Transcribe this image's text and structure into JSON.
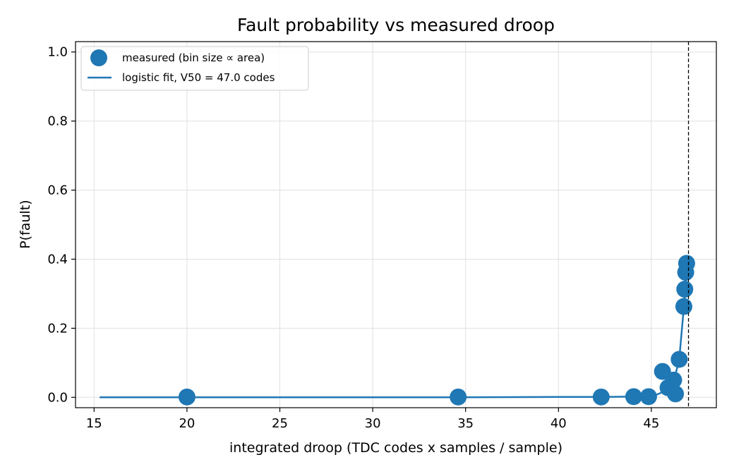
{
  "chart_data": {
    "type": "scatter",
    "title": "Fault probability vs measured droop",
    "xlabel": "integrated droop (TDC codes x samples / sample)",
    "ylabel": "P(fault)",
    "xlim": [
      14.0,
      48.5
    ],
    "ylim": [
      -0.03,
      1.03
    ],
    "xticks": [
      15,
      20,
      25,
      30,
      35,
      40,
      45
    ],
    "yticks": [
      0.0,
      0.2,
      0.4,
      0.6,
      0.8,
      1.0
    ],
    "xtick_labels": [
      "15",
      "20",
      "25",
      "30",
      "35",
      "40",
      "45"
    ],
    "ytick_labels": [
      "0.0",
      "0.2",
      "0.4",
      "0.6",
      "0.8",
      "1.0"
    ],
    "grid": true,
    "legend_position": "top-left",
    "color": "#1f77b4",
    "series": [
      {
        "name": "measured (bin size ∝ area)",
        "kind": "scatter",
        "x": [
          20.0,
          34.6,
          42.3,
          44.05,
          44.85,
          45.6,
          45.9,
          46.2,
          46.3,
          46.5,
          46.75,
          46.8,
          46.85,
          46.9
        ],
        "y": [
          0.001,
          0.001,
          0.001,
          0.002,
          0.002,
          0.075,
          0.028,
          0.05,
          0.01,
          0.11,
          0.263,
          0.313,
          0.362,
          0.388
        ]
      },
      {
        "name": "logistic fit, V50 = 47.0 codes",
        "kind": "line",
        "x": [
          15.3,
          20.0,
          25.0,
          30.0,
          34.6,
          40.0,
          42.3,
          44.0,
          44.85,
          45.3,
          45.6,
          45.9,
          46.2,
          46.5,
          46.75,
          46.9
        ],
        "y": [
          0.0,
          0.0,
          0.0,
          0.0,
          0.0,
          0.001,
          0.001,
          0.002,
          0.004,
          0.008,
          0.015,
          0.025,
          0.045,
          0.11,
          0.26,
          0.375
        ]
      }
    ],
    "threshold_line": {
      "x": 47.0,
      "style": "dashed",
      "color": "#000000"
    }
  }
}
